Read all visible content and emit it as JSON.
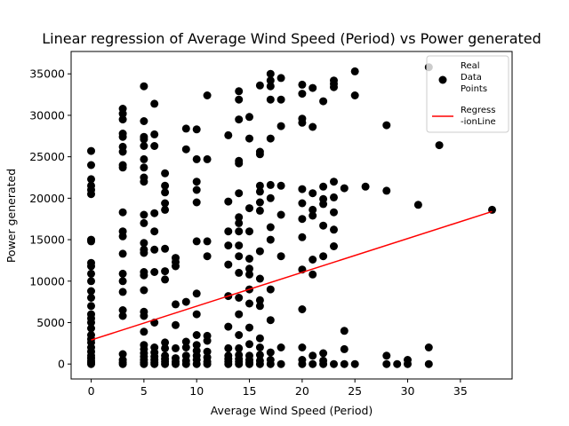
{
  "chart_data": {
    "type": "scatter",
    "title": "Linear regression of Average Wind Speed (Period) vs Power generated",
    "xlabel": "Average Wind Speed (Period)",
    "ylabel": "Power generated",
    "xlim": [
      -1.9,
      39.9
    ],
    "ylim": [
      -1800,
      37700
    ],
    "xticks": [
      0,
      5,
      10,
      15,
      20,
      25,
      30,
      35
    ],
    "yticks": [
      0,
      5000,
      10000,
      15000,
      20000,
      25000,
      30000,
      35000
    ],
    "grid": false,
    "legend_position": "top-right",
    "legend": [
      {
        "label": "Real\nData\nPoints",
        "marker": "circle",
        "color": "#000000"
      },
      {
        "label": "Regress\n-ionLine",
        "marker": "line",
        "color": "#ff0000"
      }
    ],
    "series": [
      {
        "kind": "scatter",
        "color": "#000000",
        "points": [
          [
            0,
            0
          ],
          [
            0,
            200
          ],
          [
            0,
            400
          ],
          [
            0,
            700
          ],
          [
            0,
            1000
          ],
          [
            0,
            1500
          ],
          [
            0,
            2000
          ],
          [
            0,
            2600
          ],
          [
            0,
            3000
          ],
          [
            0,
            3500
          ],
          [
            0,
            4300
          ],
          [
            0,
            5000
          ],
          [
            0,
            5500
          ],
          [
            0,
            6000
          ],
          [
            0,
            7000
          ],
          [
            0,
            8000
          ],
          [
            0,
            8800
          ],
          [
            0,
            10000
          ],
          [
            0,
            10900
          ],
          [
            0,
            11800
          ],
          [
            0,
            12200
          ],
          [
            0,
            14800
          ],
          [
            0,
            15000
          ],
          [
            0,
            20500
          ],
          [
            0,
            21000
          ],
          [
            0,
            21500
          ],
          [
            0,
            22300
          ],
          [
            0,
            24000
          ],
          [
            0,
            25700
          ],
          [
            3,
            0
          ],
          [
            3,
            200
          ],
          [
            3,
            500
          ],
          [
            3,
            1200
          ],
          [
            3,
            5800
          ],
          [
            3,
            6500
          ],
          [
            3,
            8700
          ],
          [
            3,
            10000
          ],
          [
            3,
            10900
          ],
          [
            3,
            13300
          ],
          [
            3,
            15400
          ],
          [
            3,
            16000
          ],
          [
            3,
            18300
          ],
          [
            3,
            23700
          ],
          [
            3,
            24000
          ],
          [
            3,
            25600
          ],
          [
            3,
            26200
          ],
          [
            3,
            27400
          ],
          [
            3,
            27800
          ],
          [
            3,
            29500
          ],
          [
            3,
            30200
          ],
          [
            3,
            30800
          ],
          [
            5,
            0
          ],
          [
            5,
            200
          ],
          [
            5,
            500
          ],
          [
            5,
            900
          ],
          [
            5,
            1300
          ],
          [
            5,
            1800
          ],
          [
            5,
            2300
          ],
          [
            5,
            3900
          ],
          [
            5,
            5800
          ],
          [
            5,
            6300
          ],
          [
            5,
            8900
          ],
          [
            5,
            10700
          ],
          [
            5,
            11100
          ],
          [
            5,
            13400
          ],
          [
            5,
            13800
          ],
          [
            5,
            14600
          ],
          [
            5,
            17000
          ],
          [
            5,
            18000
          ],
          [
            5,
            22000
          ],
          [
            5,
            22500
          ],
          [
            5,
            23700
          ],
          [
            5,
            24700
          ],
          [
            5,
            26300
          ],
          [
            5,
            27100
          ],
          [
            5,
            27400
          ],
          [
            5,
            29300
          ],
          [
            5,
            33500
          ],
          [
            6,
            0
          ],
          [
            6,
            200
          ],
          [
            6,
            500
          ],
          [
            6,
            900
          ],
          [
            6,
            1400
          ],
          [
            6,
            2000
          ],
          [
            6,
            5000
          ],
          [
            6,
            11100
          ],
          [
            6,
            13800
          ],
          [
            6,
            16000
          ],
          [
            6,
            18200
          ],
          [
            6,
            26300
          ],
          [
            6,
            27700
          ],
          [
            6,
            31400
          ],
          [
            7,
            0
          ],
          [
            7,
            300
          ],
          [
            7,
            600
          ],
          [
            7,
            1000
          ],
          [
            7,
            1900
          ],
          [
            7,
            2600
          ],
          [
            7,
            10200
          ],
          [
            7,
            11200
          ],
          [
            7,
            13900
          ],
          [
            7,
            18600
          ],
          [
            7,
            19400
          ],
          [
            7,
            20700
          ],
          [
            7,
            21500
          ],
          [
            7,
            23000
          ],
          [
            8,
            0
          ],
          [
            8,
            300
          ],
          [
            8,
            700
          ],
          [
            8,
            1900
          ],
          [
            8,
            4700
          ],
          [
            8,
            7200
          ],
          [
            8,
            11800
          ],
          [
            8,
            12300
          ],
          [
            8,
            12800
          ],
          [
            9,
            0
          ],
          [
            9,
            400
          ],
          [
            9,
            1000
          ],
          [
            9,
            2000
          ],
          [
            9,
            2700
          ],
          [
            9,
            7500
          ],
          [
            9,
            25900
          ],
          [
            9,
            28400
          ],
          [
            10,
            0
          ],
          [
            10,
            500
          ],
          [
            10,
            1000
          ],
          [
            10,
            1600
          ],
          [
            10,
            2300
          ],
          [
            10,
            3500
          ],
          [
            10,
            6000
          ],
          [
            10,
            8500
          ],
          [
            10,
            14800
          ],
          [
            10,
            19500
          ],
          [
            10,
            21000
          ],
          [
            10,
            22000
          ],
          [
            10,
            24700
          ],
          [
            10,
            28300
          ],
          [
            11,
            0
          ],
          [
            11,
            300
          ],
          [
            11,
            800
          ],
          [
            11,
            1500
          ],
          [
            11,
            2800
          ],
          [
            11,
            3400
          ],
          [
            11,
            13000
          ],
          [
            11,
            14800
          ],
          [
            11,
            24700
          ],
          [
            11,
            32400
          ],
          [
            13,
            0
          ],
          [
            13,
            300
          ],
          [
            13,
            600
          ],
          [
            13,
            1000
          ],
          [
            13,
            1900
          ],
          [
            13,
            4500
          ],
          [
            13,
            8200
          ],
          [
            13,
            12000
          ],
          [
            13,
            14300
          ],
          [
            13,
            16000
          ],
          [
            13,
            19600
          ],
          [
            13,
            27600
          ],
          [
            14,
            0
          ],
          [
            14,
            300
          ],
          [
            14,
            600
          ],
          [
            14,
            1100
          ],
          [
            14,
            1900
          ],
          [
            14,
            3500
          ],
          [
            14,
            6000
          ],
          [
            14,
            8000
          ],
          [
            14,
            11000
          ],
          [
            14,
            13000
          ],
          [
            14,
            14300
          ],
          [
            14,
            16000
          ],
          [
            14,
            17000
          ],
          [
            14,
            17700
          ],
          [
            14,
            20600
          ],
          [
            14,
            24200
          ],
          [
            14,
            24500
          ],
          [
            14,
            29500
          ],
          [
            14,
            31900
          ],
          [
            14,
            32900
          ],
          [
            15,
            0
          ],
          [
            15,
            200
          ],
          [
            15,
            500
          ],
          [
            15,
            1000
          ],
          [
            15,
            2400
          ],
          [
            15,
            4400
          ],
          [
            15,
            7300
          ],
          [
            15,
            9000
          ],
          [
            15,
            10800
          ],
          [
            15,
            11500
          ],
          [
            15,
            12700
          ],
          [
            15,
            16000
          ],
          [
            15,
            18800
          ],
          [
            15,
            27200
          ],
          [
            15,
            29800
          ],
          [
            16,
            0
          ],
          [
            16,
            400
          ],
          [
            16,
            1100
          ],
          [
            16,
            2000
          ],
          [
            16,
            3100
          ],
          [
            16,
            7000
          ],
          [
            16,
            7700
          ],
          [
            16,
            10300
          ],
          [
            16,
            13600
          ],
          [
            16,
            18500
          ],
          [
            16,
            19500
          ],
          [
            16,
            20800
          ],
          [
            16,
            21500
          ],
          [
            16,
            25300
          ],
          [
            16,
            25600
          ],
          [
            16,
            33600
          ],
          [
            17,
            0
          ],
          [
            17,
            500
          ],
          [
            17,
            1400
          ],
          [
            17,
            5300
          ],
          [
            17,
            9000
          ],
          [
            17,
            15000
          ],
          [
            17,
            16500
          ],
          [
            17,
            20000
          ],
          [
            17,
            21600
          ],
          [
            17,
            27200
          ],
          [
            17,
            31900
          ],
          [
            17,
            33500
          ],
          [
            17,
            34200
          ],
          [
            17,
            35000
          ],
          [
            18,
            0
          ],
          [
            18,
            2000
          ],
          [
            18,
            13000
          ],
          [
            18,
            18000
          ],
          [
            18,
            21500
          ],
          [
            18,
            28700
          ],
          [
            18,
            31900
          ],
          [
            18,
            34500
          ],
          [
            20,
            0
          ],
          [
            20,
            500
          ],
          [
            20,
            2000
          ],
          [
            20,
            6600
          ],
          [
            20,
            11400
          ],
          [
            20,
            15300
          ],
          [
            20,
            17500
          ],
          [
            20,
            19400
          ],
          [
            20,
            21100
          ],
          [
            20,
            29100
          ],
          [
            20,
            29600
          ],
          [
            20,
            32600
          ],
          [
            20,
            33700
          ],
          [
            21,
            0
          ],
          [
            21,
            1000
          ],
          [
            21,
            10800
          ],
          [
            21,
            12600
          ],
          [
            21,
            17900
          ],
          [
            21,
            18600
          ],
          [
            21,
            20600
          ],
          [
            21,
            28600
          ],
          [
            21,
            33300
          ],
          [
            22,
            0
          ],
          [
            22,
            400
          ],
          [
            22,
            1300
          ],
          [
            22,
            13000
          ],
          [
            22,
            16700
          ],
          [
            22,
            19300
          ],
          [
            22,
            19900
          ],
          [
            22,
            21400
          ],
          [
            22,
            31700
          ],
          [
            23,
            0
          ],
          [
            23,
            14200
          ],
          [
            23,
            16200
          ],
          [
            23,
            18300
          ],
          [
            23,
            20100
          ],
          [
            23,
            22000
          ],
          [
            23,
            33400
          ],
          [
            23,
            33800
          ],
          [
            23,
            34200
          ],
          [
            24,
            0
          ],
          [
            24,
            1800
          ],
          [
            24,
            4000
          ],
          [
            24,
            21200
          ],
          [
            25,
            0
          ],
          [
            25,
            32400
          ],
          [
            25,
            35300
          ],
          [
            26,
            21400
          ],
          [
            28,
            0
          ],
          [
            28,
            1000
          ],
          [
            28,
            20900
          ],
          [
            28,
            28800
          ],
          [
            29,
            0
          ],
          [
            30,
            0
          ],
          [
            30,
            500
          ],
          [
            31,
            19200
          ],
          [
            32,
            0
          ],
          [
            32,
            2000
          ],
          [
            32,
            35800
          ],
          [
            33,
            26400
          ],
          [
            38,
            18600
          ]
        ]
      },
      {
        "kind": "line",
        "color": "#ff0000",
        "points": [
          [
            0,
            2900
          ],
          [
            38,
            18400
          ]
        ]
      }
    ]
  }
}
